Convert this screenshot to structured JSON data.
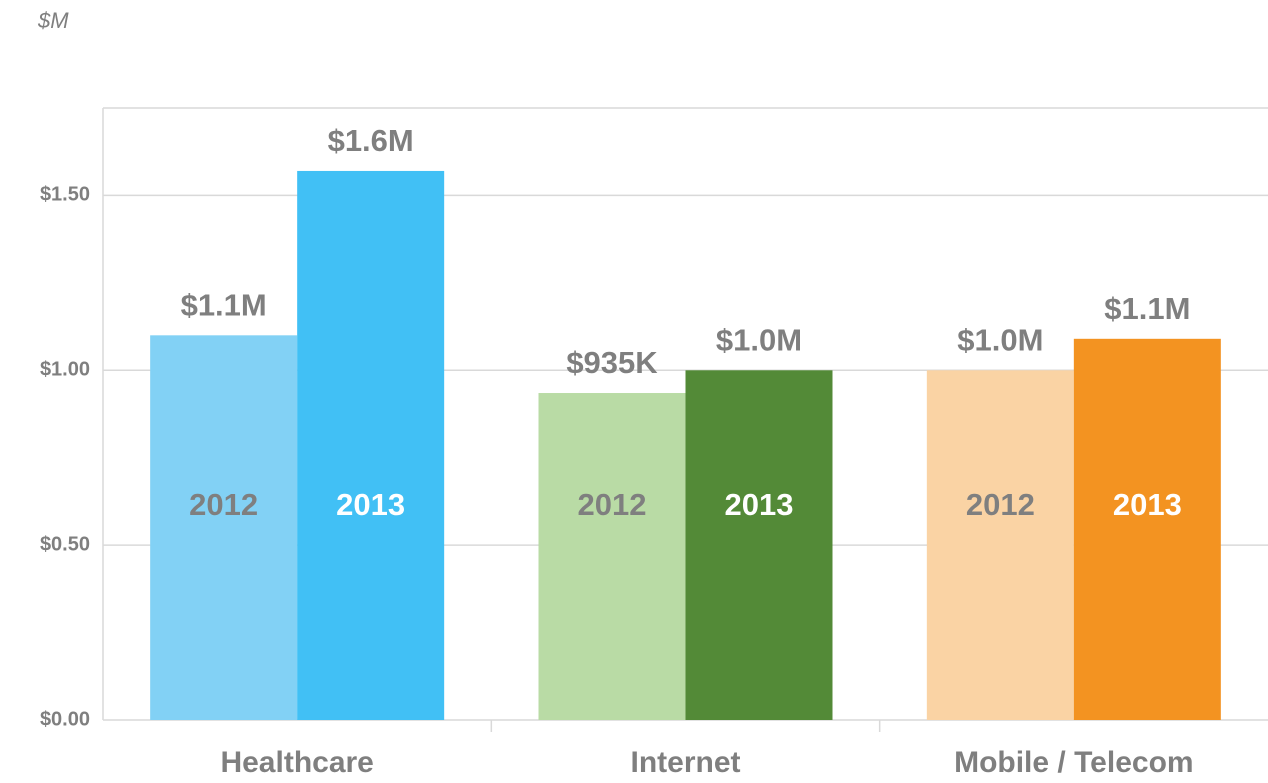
{
  "chart_data": {
    "type": "bar",
    "y_axis_label": "$M",
    "categories": [
      "Healthcare",
      "Internet",
      "Mobile / Telecom"
    ],
    "series": [
      {
        "name": "2012",
        "colors": [
          "#82d1f5",
          "#b9dba5",
          "#fad3a4"
        ],
        "values": [
          1.1,
          0.935,
          1.0
        ],
        "value_labels": [
          "$1.1M",
          "$935K",
          "$1.0M"
        ]
      },
      {
        "name": "2013",
        "colors": [
          "#41c0f5",
          "#538a37",
          "#f39321"
        ],
        "values": [
          1.57,
          1.0,
          1.09
        ],
        "value_labels": [
          "$1.6M",
          "$1.0M",
          "$1.1M"
        ]
      }
    ],
    "ylim": [
      0,
      1.75
    ],
    "yticks": [
      {
        "value": 0,
        "label": "$0.00"
      },
      {
        "value": 0.5,
        "label": "$0.50"
      },
      {
        "value": 1.0,
        "label": "$1.00"
      },
      {
        "value": 1.5,
        "label": "$1.50"
      }
    ],
    "grid": true
  }
}
